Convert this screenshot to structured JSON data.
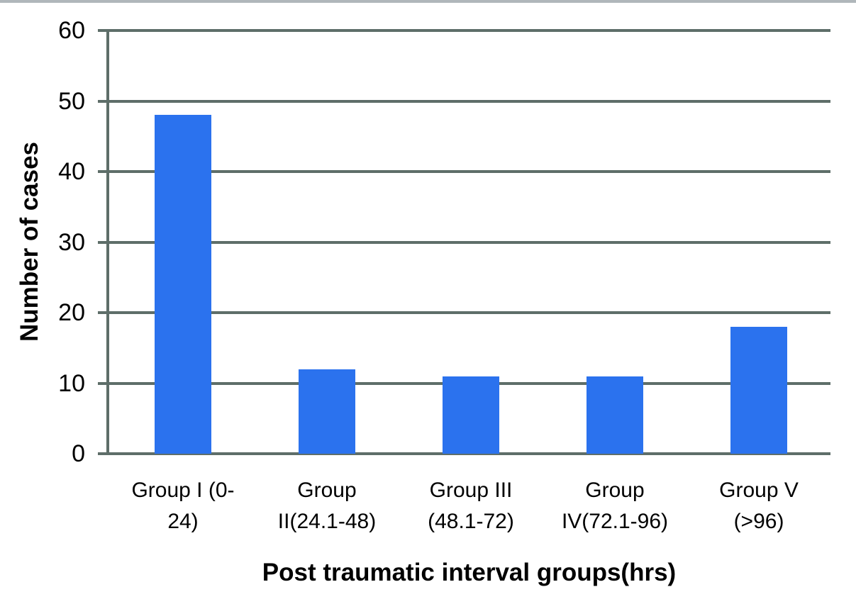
{
  "chart_data": {
    "type": "bar",
    "title": "",
    "xlabel": "Post traumatic interval groups(hrs)",
    "ylabel": "Number of cases",
    "categories": [
      "Group I (0-24)",
      "Group II(24.1-48)",
      "Group III (48.1-72)",
      "Group IV(72.1-96)",
      "Group V (>96)"
    ],
    "category_label_lines": [
      [
        "Group I (0-",
        "24)"
      ],
      [
        "Group",
        "II(24.1-48)"
      ],
      [
        "Group III",
        "(48.1-72)"
      ],
      [
        "Group",
        "IV(72.1-96)"
      ],
      [
        "Group V",
        "(>96)"
      ]
    ],
    "values": [
      48,
      12,
      11,
      11,
      18
    ],
    "yticks": [
      0,
      10,
      20,
      30,
      40,
      50,
      60
    ],
    "ylim": [
      0,
      60
    ],
    "grid": true,
    "legend_position": "none",
    "colors": {
      "bar": "#2b72ee",
      "grid": "#5e6e69",
      "axis": "#5e6e69",
      "text": "#000000",
      "top_border": "#b0b7bb",
      "background": "#ffffff"
    }
  }
}
